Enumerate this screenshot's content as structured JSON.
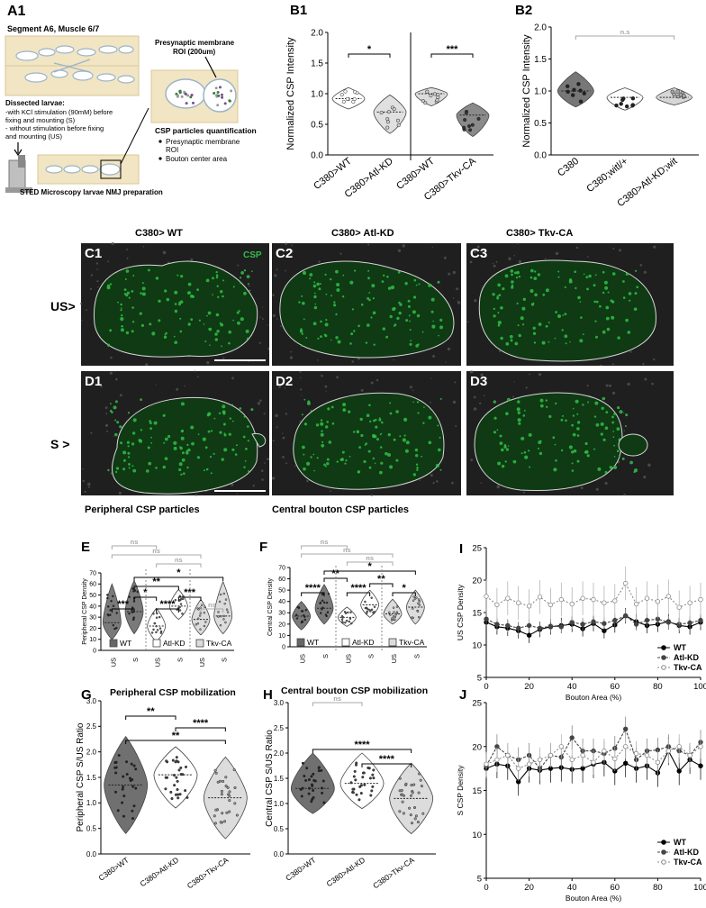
{
  "colors": {
    "dark": "#555555",
    "mid": "#8c8c8c",
    "light": "#cfcfcf",
    "green": "#2fbf45",
    "ns": "#a8a8a8"
  },
  "panelA1": {
    "label": "A1",
    "title": "Segment A6, Muscle 6/7",
    "roi_label_1": "Presynaptic membrane",
    "roi_label_2": "ROI (200um)",
    "dissected_title": "Dissected larvae:",
    "dissected_1": "-with KCl stimulation (90mM) before",
    "dissected_2": "fixing and mounting (S)",
    "dissected_3": "- without stimulation before fixing",
    "dissected_4": "and mounting (US)",
    "quant_title": "CSP particles quantification",
    "quant_1": "Presynaptic membrane",
    "quant_1b": "ROI",
    "quant_2": "Bouton center area",
    "sted_label": "STED Microscopy larvae NMJ preparation"
  },
  "micro": {
    "col_titles": [
      "C380> WT",
      "C380> Atl-KD",
      "C380> Tkv-CA"
    ],
    "row_us": "US>",
    "row_s": "S >",
    "csp": "CSP",
    "labels_c": [
      "C1",
      "C2",
      "C3"
    ],
    "labels_d": [
      "D1",
      "D2",
      "D3"
    ],
    "caption_left": "Peripheral CSP particles",
    "caption_right": "Central bouton CSP particles"
  },
  "chart_data": [
    {
      "id": "B1",
      "type": "violin",
      "label": "B1",
      "ylabel": "Normalized CSP Intensity",
      "yticks": [
        "0.0",
        "0.5",
        "1.0",
        "1.5",
        "2.0"
      ],
      "ylim": [
        0,
        2.0
      ],
      "categories": [
        "C380>WT",
        "C380>Atl-KD",
        "C380>WT",
        "C380>Tkv-CA"
      ],
      "median": [
        0.92,
        0.7,
        1.0,
        0.65
      ],
      "range": [
        [
          0.75,
          1.1
        ],
        [
          0.35,
          0.98
        ],
        [
          0.8,
          1.1
        ],
        [
          0.3,
          0.85
        ]
      ],
      "significance": [
        {
          "text": "*",
          "groups": [
            0,
            1
          ]
        },
        {
          "text": "***",
          "groups": [
            2,
            3
          ]
        }
      ]
    },
    {
      "id": "B2",
      "type": "violin",
      "label": "B2",
      "ylabel": "Normalized CSP Intensity",
      "yticks": [
        "0.0",
        "0.5",
        "1.0",
        "1.5",
        "2.0"
      ],
      "ylim": [
        0,
        2.0
      ],
      "categories": [
        "C380",
        "C380;witl/+",
        "C380>Atl-KD;wit"
      ],
      "median": [
        1.0,
        0.9,
        0.9
      ],
      "range": [
        [
          0.75,
          1.3
        ],
        [
          0.7,
          1.05
        ],
        [
          0.78,
          1.05
        ]
      ],
      "significance": [
        {
          "text": "n.s",
          "groups": [
            0,
            2
          ]
        }
      ]
    },
    {
      "id": "E",
      "type": "violin",
      "label": "E",
      "ylabel": "Peripheral CSP Density",
      "yticks": [
        "0",
        "10",
        "20",
        "30",
        "40",
        "50",
        "60",
        "70"
      ],
      "ylim": [
        0,
        70
      ],
      "categories": [
        "US",
        "S",
        "US",
        "S",
        "US",
        "S"
      ],
      "legend": [
        "WT",
        "Atl-KD",
        "Tkv-CA"
      ],
      "median": [
        25,
        35,
        22,
        40,
        28,
        31
      ],
      "range": [
        [
          10,
          60
        ],
        [
          15,
          63
        ],
        [
          8,
          38
        ],
        [
          28,
          55
        ],
        [
          14,
          46
        ],
        [
          15,
          62
        ]
      ],
      "significance": [
        {
          "text": "***",
          "groups": [
            0,
            1
          ]
        },
        {
          "text": "****",
          "groups": [
            2,
            3
          ]
        },
        {
          "text": "ns",
          "groups": [
            4,
            5
          ]
        },
        {
          "text": "*",
          "groups": [
            1,
            2
          ]
        },
        {
          "text": "***",
          "groups": [
            3,
            4
          ]
        },
        {
          "text": "**",
          "groups": [
            1,
            3
          ]
        },
        {
          "text": "*",
          "groups": [
            1,
            5
          ]
        },
        {
          "text": "ns",
          "groups": [
            0,
            2
          ]
        },
        {
          "text": "ns",
          "groups": [
            0,
            4
          ]
        },
        {
          "text": "ns",
          "groups": [
            2,
            4
          ]
        }
      ]
    },
    {
      "id": "F",
      "type": "violin",
      "label": "F",
      "ylabel": "Central CSP Density",
      "yticks": [
        "0",
        "10",
        "20",
        "30",
        "40",
        "50",
        "60",
        "70"
      ],
      "ylim": [
        0,
        70
      ],
      "categories": [
        "US",
        "S",
        "US",
        "S",
        "US",
        "S"
      ],
      "legend": [
        "WT",
        "Atl-KD",
        "Tkv-CA"
      ],
      "median": [
        27,
        34,
        26,
        37,
        29,
        35
      ],
      "range": [
        [
          15,
          40
        ],
        [
          20,
          55
        ],
        [
          18,
          35
        ],
        [
          26,
          50
        ],
        [
          20,
          42
        ],
        [
          20,
          50
        ]
      ],
      "significance": [
        {
          "text": "****",
          "groups": [
            0,
            1
          ]
        },
        {
          "text": "****",
          "groups": [
            2,
            3
          ]
        },
        {
          "text": "*",
          "groups": [
            4,
            5
          ]
        },
        {
          "text": "**",
          "groups": [
            1,
            2
          ]
        },
        {
          "text": "**",
          "groups": [
            3,
            4
          ]
        },
        {
          "text": "*",
          "groups": [
            1,
            5
          ]
        },
        {
          "text": "ns",
          "groups": [
            0,
            2
          ]
        },
        {
          "text": "ns",
          "groups": [
            0,
            4
          ]
        },
        {
          "text": "ns",
          "groups": [
            2,
            4
          ]
        }
      ]
    },
    {
      "id": "G",
      "type": "violin",
      "label": "G",
      "title": "Peripheral CSP mobilization",
      "ylabel": "Peripheral CSP S/US Ratio",
      "yticks": [
        "0.0",
        "0.5",
        "1.0",
        "1.5",
        "2.0",
        "2.5",
        "3.0"
      ],
      "ylim": [
        0,
        3.0
      ],
      "categories": [
        "C380>WT",
        "C380>Atl-KD",
        "C380>Tkv-CA"
      ],
      "median": [
        1.35,
        1.55,
        1.1
      ],
      "range": [
        [
          0.4,
          2.3
        ],
        [
          0.9,
          2.1
        ],
        [
          0.3,
          1.9
        ]
      ],
      "significance": [
        {
          "text": "**",
          "groups": [
            0,
            1
          ]
        },
        {
          "text": "****",
          "groups": [
            1,
            2
          ]
        },
        {
          "text": "**",
          "groups": [
            0,
            2
          ]
        }
      ]
    },
    {
      "id": "H",
      "type": "violin",
      "label": "H",
      "title": "Central bouton CSP mobilization",
      "ylabel": "Central CSP S/US Ratio",
      "yticks": [
        "0.0",
        "0.5",
        "1.0",
        "1.5",
        "2.0",
        "2.5",
        "3.0"
      ],
      "ylim": [
        0,
        3.0
      ],
      "categories": [
        "C380>WT",
        "C380>Atl-KD",
        "C380>Tkv-CA"
      ],
      "median": [
        1.3,
        1.4,
        1.1
      ],
      "range": [
        [
          0.8,
          2.0
        ],
        [
          0.9,
          2.0
        ],
        [
          0.4,
          1.8
        ]
      ],
      "significance": [
        {
          "text": "ns",
          "groups": [
            0,
            1
          ]
        },
        {
          "text": "****",
          "groups": [
            0,
            2
          ]
        },
        {
          "text": "****",
          "groups": [
            1,
            2
          ]
        }
      ]
    },
    {
      "id": "I",
      "type": "line",
      "label": "I",
      "ylabel": "US CSP Density",
      "xlabel": "Bouton Area (%)",
      "xticks": [
        "0",
        "20",
        "40",
        "60",
        "80",
        "100"
      ],
      "yticks": [
        "5",
        "10",
        "15",
        "20",
        "25"
      ],
      "xlim": [
        0,
        100
      ],
      "ylim": [
        5,
        25
      ],
      "x": [
        0,
        5,
        10,
        15,
        20,
        25,
        30,
        35,
        40,
        45,
        50,
        55,
        60,
        65,
        70,
        75,
        80,
        85,
        90,
        95,
        100
      ],
      "series": [
        {
          "name": "WT",
          "values": [
            13.5,
            12.8,
            12.6,
            12.2,
            11.5,
            12.4,
            12.8,
            13.0,
            13.2,
            12.5,
            13.3,
            12.2,
            13.1,
            14.5,
            13.6,
            13.0,
            13.2,
            13.6,
            13.0,
            12.8,
            13.5
          ]
        },
        {
          "name": "Atl-KD",
          "values": [
            14.0,
            13.2,
            13.0,
            12.6,
            13.0,
            12.6,
            12.9,
            12.8,
            13.5,
            13.2,
            13.6,
            13.3,
            13.8,
            14.5,
            13.2,
            13.8,
            14.0,
            13.5,
            13.2,
            13.4,
            13.8
          ]
        },
        {
          "name": "Tkv-CA",
          "values": [
            17.5,
            16.2,
            17.2,
            16.5,
            16.0,
            17.4,
            16.2,
            17.0,
            16.3,
            17.2,
            17.0,
            16.5,
            16.8,
            19.5,
            16.3,
            17.2,
            16.7,
            17.5,
            15.8,
            16.5,
            17.0
          ]
        }
      ]
    },
    {
      "id": "J",
      "type": "line",
      "label": "J",
      "ylabel": "S CSP Density",
      "xlabel": "Bouton Area (%)",
      "xticks": [
        "0",
        "20",
        "40",
        "60",
        "80",
        "100"
      ],
      "yticks": [
        "5",
        "10",
        "15",
        "20",
        "25"
      ],
      "xlim": [
        0,
        100
      ],
      "ylim": [
        5,
        25
      ],
      "x": [
        0,
        5,
        10,
        15,
        20,
        25,
        30,
        35,
        40,
        45,
        50,
        55,
        60,
        65,
        70,
        75,
        80,
        85,
        90,
        95,
        100
      ],
      "series": [
        {
          "name": "WT",
          "values": [
            17.5,
            18.0,
            17.8,
            16.0,
            17.5,
            17.3,
            17.5,
            17.6,
            17.4,
            17.5,
            18.0,
            18.2,
            17.2,
            18.1,
            17.5,
            17.8,
            17.0,
            19.5,
            17.2,
            18.5,
            17.8
          ]
        },
        {
          "name": "Atl-KD",
          "values": [
            17.8,
            20.0,
            19.0,
            18.5,
            19.0,
            17.5,
            19.0,
            18.8,
            21.0,
            19.5,
            19.5,
            19.2,
            19.8,
            22.0,
            18.5,
            19.5,
            19.6,
            20.0,
            19.5,
            19.0,
            20.5
          ]
        },
        {
          "name": "Tkv-CA",
          "values": [
            18.0,
            18.5,
            19.0,
            17.5,
            18.0,
            18.5,
            19.0,
            20.0,
            18.5,
            19.0,
            18.2,
            19.5,
            18.6,
            20.0,
            19.2,
            19.0,
            18.2,
            19.5,
            20.0,
            19.0,
            20.0
          ]
        }
      ]
    }
  ]
}
